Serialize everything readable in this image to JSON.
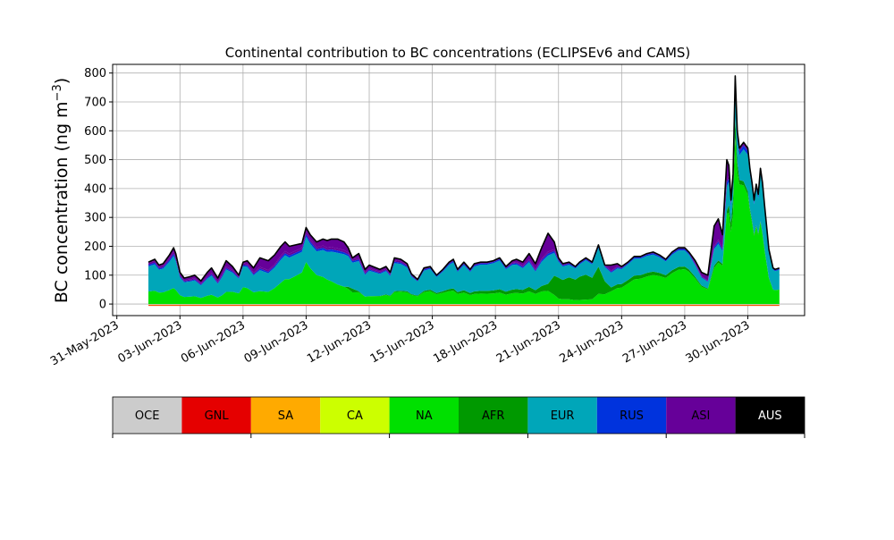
{
  "chart_data": {
    "type": "area",
    "title": "Continental contribution to BC concentrations (ECLIPSEv6 and CAMS)",
    "ylabel_text": "BC concentration (ng m",
    "ylabel_sup": "−3",
    "ylabel_close": ")",
    "xlabel": "",
    "grid": true,
    "x_start": "2023-05-31",
    "x_domain_days": [
      -0.2,
      32.7
    ],
    "ylim": [
      -40,
      830
    ],
    "y_ticks": [
      0,
      100,
      200,
      300,
      400,
      500,
      600,
      700,
      800
    ],
    "x_tick_days": [
      0,
      3,
      6,
      9,
      12,
      15,
      18,
      21,
      24,
      27,
      30
    ],
    "x_tick_labels": [
      "31-May-2023",
      "03-Jun-2023",
      "06-Jun-2023",
      "09-Jun-2023",
      "12-Jun-2023",
      "15-Jun-2023",
      "18-Jun-2023",
      "21-Jun-2023",
      "24-Jun-2023",
      "27-Jun-2023",
      "30-Jun-2023"
    ],
    "total": {
      "x": [
        1.5,
        1.8,
        2.0,
        2.2,
        2.5,
        2.7,
        2.8,
        3.0,
        3.2,
        3.5,
        3.7,
        4.0,
        4.3,
        4.5,
        4.8,
        5.0,
        5.2,
        5.5,
        5.8,
        6.0,
        6.2,
        6.5,
        6.8,
        7.2,
        7.5,
        7.8,
        8.0,
        8.2,
        8.5,
        8.8,
        9.0,
        9.2,
        9.5,
        9.8,
        10.0,
        10.2,
        10.5,
        10.8,
        11.0,
        11.2,
        11.5,
        11.8,
        12.0,
        12.5,
        12.8,
        13.0,
        13.2,
        13.5,
        13.8,
        14.0,
        14.3,
        14.6,
        14.9,
        15.2,
        15.5,
        15.8,
        16.0,
        16.2,
        16.5,
        16.8,
        17.0,
        17.3,
        17.6,
        17.9,
        18.2,
        18.5,
        18.8,
        19.0,
        19.3,
        19.6,
        19.9,
        20.2,
        20.5,
        20.8,
        21.0,
        21.2,
        21.5,
        21.8,
        22.0,
        22.3,
        22.6,
        22.9,
        23.2,
        23.5,
        23.8,
        24.0,
        24.3,
        24.6,
        24.9,
        25.2,
        25.5,
        25.8,
        26.1,
        26.4,
        26.7,
        27.0,
        27.2,
        27.5,
        27.8,
        28.1,
        28.4,
        28.6,
        28.8,
        29.0,
        29.1,
        29.2,
        29.3,
        29.4,
        29.5,
        29.6,
        29.7,
        29.8,
        30.0,
        30.1,
        30.2,
        30.3,
        30.4,
        30.5,
        30.6,
        30.7,
        30.8,
        31.0,
        31.2,
        31.3,
        31.5
      ],
      "y": [
        145,
        155,
        135,
        140,
        170,
        195,
        175,
        110,
        90,
        95,
        100,
        80,
        110,
        125,
        90,
        120,
        150,
        130,
        100,
        145,
        150,
        125,
        160,
        150,
        170,
        200,
        215,
        200,
        205,
        210,
        265,
        240,
        215,
        225,
        220,
        225,
        225,
        215,
        195,
        160,
        175,
        120,
        135,
        120,
        130,
        110,
        160,
        155,
        140,
        105,
        85,
        125,
        130,
        100,
        120,
        145,
        155,
        120,
        145,
        120,
        140,
        145,
        145,
        150,
        160,
        130,
        150,
        155,
        145,
        175,
        140,
        195,
        245,
        215,
        160,
        140,
        145,
        130,
        145,
        160,
        145,
        205,
        135,
        135,
        140,
        130,
        145,
        165,
        165,
        175,
        180,
        170,
        155,
        180,
        195,
        195,
        180,
        150,
        110,
        100,
        270,
        295,
        240,
        500,
        480,
        360,
        450,
        790,
        600,
        540,
        550,
        560,
        540,
        470,
        420,
        360,
        415,
        380,
        470,
        420,
        340,
        190,
        125,
        120,
        125
      ]
    },
    "series_fractions": [
      {
        "name": "NA",
        "x": [
          1.5,
          5.0,
          6.0,
          7.0,
          9.0,
          10.5,
          12.0,
          15.0,
          17.0,
          20.0,
          21.0,
          22.5,
          24.5,
          25.5,
          27.0,
          28.5,
          29.5,
          30.5,
          31.2
        ],
        "y": [
          0.3,
          0.25,
          0.4,
          0.25,
          0.55,
          0.3,
          0.2,
          0.35,
          0.25,
          0.25,
          0.12,
          0.1,
          0.55,
          0.6,
          0.65,
          0.45,
          0.8,
          0.75,
          0.4
        ]
      },
      {
        "name": "AFR",
        "x": [
          1.5,
          10.8,
          11.2,
          11.6,
          20.5,
          21.0,
          22.0,
          23.0,
          23.5,
          29.0,
          29.3,
          29.6,
          31.2
        ],
        "y": [
          0,
          0,
          0.08,
          0,
          0.1,
          0.45,
          0.6,
          0.5,
          0.1,
          0.02,
          0.12,
          0.03,
          0
        ]
      },
      {
        "name": "EUR",
        "x": [
          1.5,
          6.0,
          9.0,
          12.0,
          15.0,
          18.0,
          21.5,
          24.0,
          27.0,
          29.5,
          31.2
        ],
        "y": [
          0.6,
          0.5,
          0.33,
          0.65,
          0.55,
          0.65,
          0.3,
          0.4,
          0.3,
          0.14,
          0.55
        ]
      },
      {
        "name": "RUS",
        "x": [
          1.5,
          31.2
        ],
        "y": [
          0.035,
          0.025
        ]
      },
      {
        "name": "ASI",
        "x": [
          1.5,
          31.2
        ],
        "y": [
          0.04,
          0.02
        ]
      },
      {
        "name": "AUS",
        "x": [
          1.5,
          31.2
        ],
        "y": [
          0,
          0
        ]
      },
      {
        "name": "OCE",
        "x": [
          1.5,
          31.2
        ],
        "y": [
          0,
          0
        ]
      },
      {
        "name": "GNL",
        "x": [
          1.5,
          31.2
        ],
        "y": [
          0,
          0
        ]
      },
      {
        "name": "SA",
        "x": [
          1.5,
          31.2
        ],
        "y": [
          0,
          0
        ]
      },
      {
        "name": "CA",
        "x": [
          1.5,
          31.2
        ],
        "y": [
          0,
          0
        ]
      }
    ],
    "stack_order": [
      "NA",
      "AFR",
      "EUR",
      "RUS",
      "ASI"
    ],
    "series_colors": {
      "OCE": "#cccccc",
      "GNL": "#e50000",
      "SA": "#ffaa00",
      "CA": "#ccff00",
      "NA": "#00e000",
      "AFR": "#009900",
      "EUR": "#00a6b9",
      "RUS": "#0033dd",
      "ASI": "#660099",
      "AUS": "#000000"
    },
    "legend": {
      "placement": "bottom colorbar",
      "entries": [
        {
          "label": "OCE",
          "color": "#cccccc",
          "text_color": "#000000"
        },
        {
          "label": "GNL",
          "color": "#e50000",
          "text_color": "#000000"
        },
        {
          "label": "SA",
          "color": "#ffaa00",
          "text_color": "#000000"
        },
        {
          "label": "CA",
          "color": "#ccff00",
          "text_color": "#000000"
        },
        {
          "label": "NA",
          "color": "#00e000",
          "text_color": "#000000"
        },
        {
          "label": "AFR",
          "color": "#009900",
          "text_color": "#000000"
        },
        {
          "label": "EUR",
          "color": "#00a6b9",
          "text_color": "#000000"
        },
        {
          "label": "RUS",
          "color": "#0033dd",
          "text_color": "#000000"
        },
        {
          "label": "ASI",
          "color": "#660099",
          "text_color": "#000000"
        },
        {
          "label": "AUS",
          "color": "#000000",
          "text_color": "#ffffff"
        }
      ]
    }
  }
}
